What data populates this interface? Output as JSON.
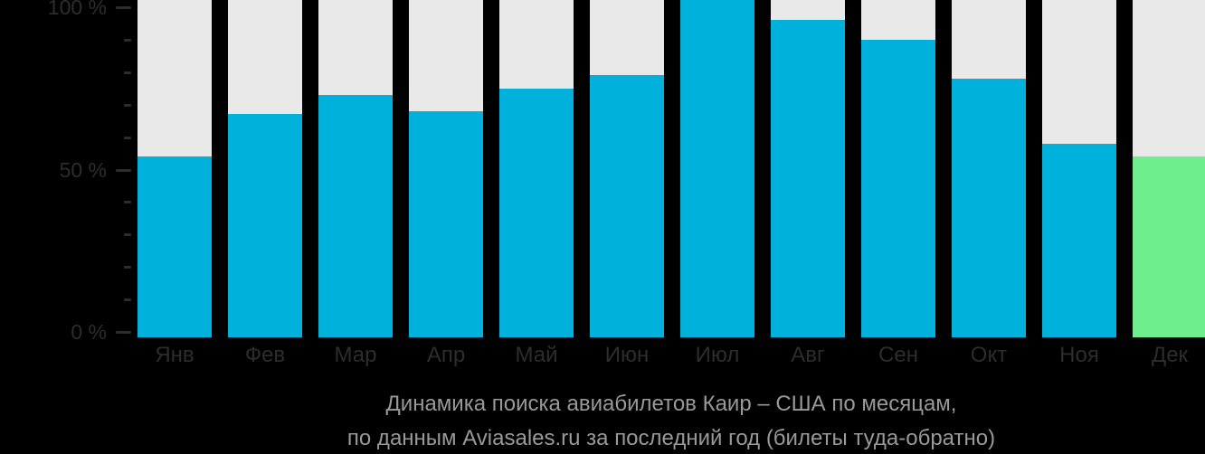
{
  "title": {
    "line1": "Динамика поиска авиабилетов Каир – США по месяцам,",
    "line2": "по данным Aviasales.ru за последний год (билеты туда-обратно)"
  },
  "y_axis": {
    "labels": [
      "100 %",
      "50 %",
      "0 %"
    ],
    "major_values": [
      100,
      50,
      0
    ],
    "minor_step": 10
  },
  "chart_data": {
    "type": "bar",
    "categories": [
      "Янв",
      "Фев",
      "Мар",
      "Апр",
      "Май",
      "Июн",
      "Июл",
      "Авг",
      "Сен",
      "Окт",
      "Ноя",
      "Дек"
    ],
    "values": [
      54,
      67,
      73,
      68,
      75,
      79,
      100,
      96,
      90,
      78,
      58,
      54
    ],
    "title": "Динамика поиска авиабилетов Каир – США по месяцам,",
    "subtitle": "по данным Aviasales.ru за последний год (билеты туда-обратно)",
    "xlabel": "",
    "ylabel": "",
    "ylim": [
      0,
      100
    ],
    "grid": false,
    "legend": false,
    "highlighted_category": "Дек",
    "bar_unit": "percent of peak month searches"
  },
  "colors": {
    "background": "#000000",
    "bar": "#00b1dc",
    "bar_highlight": "#6fee8e",
    "track": "#e9e9e9",
    "axis_text": "#2d2d2d",
    "tick": "#2d2d2d",
    "caption_text": "#999999"
  }
}
